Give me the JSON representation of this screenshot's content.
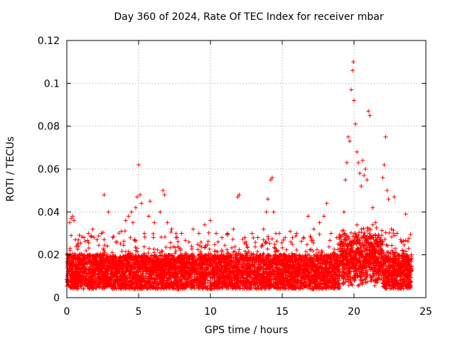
{
  "chart_data": {
    "type": "scatter",
    "title": "Day 360 of 2024, Rate Of TEC Index for receiver mbar",
    "xlabel": "GPS time / hours",
    "ylabel": "ROTI / TECUs",
    "xlim": [
      0,
      25
    ],
    "ylim": [
      0,
      0.12
    ],
    "xticks": [
      "0",
      "5",
      "10",
      "15",
      "20",
      "25"
    ],
    "yticks": [
      "0",
      "0.02",
      "0.04",
      "0.06",
      "0.08",
      "0.1",
      "0.12"
    ],
    "grid": true,
    "marker": "plus",
    "series_color": "#ff0000",
    "series": [
      {
        "name": "ROTI",
        "points": [
          [
            0.2,
            0.035
          ],
          [
            0.3,
            0.037
          ],
          [
            0.4,
            0.038
          ],
          [
            0.5,
            0.036
          ],
          [
            0.3,
            0.029
          ],
          [
            0.6,
            0.027
          ],
          [
            0.8,
            0.024
          ],
          [
            1.2,
            0.028
          ],
          [
            1.5,
            0.03
          ],
          [
            1.8,
            0.032
          ],
          [
            2.1,
            0.027
          ],
          [
            2.4,
            0.03
          ],
          [
            2.6,
            0.048
          ],
          [
            2.9,
            0.04
          ],
          [
            3.2,
            0.028
          ],
          [
            3.5,
            0.026
          ],
          [
            3.8,
            0.031
          ],
          [
            4.1,
            0.036
          ],
          [
            4.3,
            0.038
          ],
          [
            4.5,
            0.04
          ],
          [
            4.6,
            0.035
          ],
          [
            4.8,
            0.042
          ],
          [
            4.9,
            0.047
          ],
          [
            5.0,
            0.062
          ],
          [
            5.1,
            0.048
          ],
          [
            5.2,
            0.044
          ],
          [
            5.4,
            0.03
          ],
          [
            5.7,
            0.038
          ],
          [
            5.8,
            0.045
          ],
          [
            6.1,
            0.035
          ],
          [
            6.5,
            0.04
          ],
          [
            6.7,
            0.05
          ],
          [
            6.8,
            0.048
          ],
          [
            7.0,
            0.035
          ],
          [
            7.3,
            0.032
          ],
          [
            7.6,
            0.028
          ],
          [
            8.0,
            0.03
          ],
          [
            8.5,
            0.026
          ],
          [
            8.8,
            0.032
          ],
          [
            9.2,
            0.03
          ],
          [
            9.6,
            0.034
          ],
          [
            10.0,
            0.036
          ],
          [
            10.4,
            0.03
          ],
          [
            10.8,
            0.028
          ],
          [
            11.2,
            0.03
          ],
          [
            11.6,
            0.032
          ],
          [
            11.9,
            0.047
          ],
          [
            12.0,
            0.048
          ],
          [
            12.4,
            0.028
          ],
          [
            12.9,
            0.03
          ],
          [
            13.3,
            0.028
          ],
          [
            13.7,
            0.032
          ],
          [
            13.9,
            0.04
          ],
          [
            14.0,
            0.046
          ],
          [
            14.2,
            0.055
          ],
          [
            14.3,
            0.056
          ],
          [
            14.4,
            0.04
          ],
          [
            14.8,
            0.03
          ],
          [
            15.2,
            0.028
          ],
          [
            15.6,
            0.026
          ],
          [
            16.0,
            0.03
          ],
          [
            16.5,
            0.028
          ],
          [
            16.8,
            0.038
          ],
          [
            17.2,
            0.032
          ],
          [
            17.6,
            0.035
          ],
          [
            17.9,
            0.038
          ],
          [
            18.1,
            0.044
          ],
          [
            18.4,
            0.03
          ],
          [
            18.8,
            0.028
          ],
          [
            19.1,
            0.026
          ],
          [
            19.3,
            0.04
          ],
          [
            19.4,
            0.055
          ],
          [
            19.5,
            0.063
          ],
          [
            19.6,
            0.075
          ],
          [
            19.7,
            0.073
          ],
          [
            19.8,
            0.097
          ],
          [
            19.9,
            0.106
          ],
          [
            19.95,
            0.11
          ],
          [
            20.0,
            0.092
          ],
          [
            20.1,
            0.081
          ],
          [
            20.2,
            0.068
          ],
          [
            20.3,
            0.063
          ],
          [
            20.4,
            0.058
          ],
          [
            20.5,
            0.052
          ],
          [
            20.6,
            0.064
          ],
          [
            20.7,
            0.057
          ],
          [
            20.8,
            0.06
          ],
          [
            20.9,
            0.055
          ],
          [
            21.0,
            0.087
          ],
          [
            21.1,
            0.085
          ],
          [
            21.3,
            0.042
          ],
          [
            21.5,
            0.035
          ],
          [
            21.8,
            0.028
          ],
          [
            22.0,
            0.056
          ],
          [
            22.1,
            0.062
          ],
          [
            22.2,
            0.075
          ],
          [
            22.3,
            0.05
          ],
          [
            22.4,
            0.046
          ],
          [
            22.6,
            0.032
          ],
          [
            22.8,
            0.047
          ],
          [
            23.0,
            0.03
          ],
          [
            23.3,
            0.026
          ],
          [
            23.6,
            0.039
          ],
          [
            23.8,
            0.023
          ],
          [
            24.0,
            0.02
          ]
        ]
      }
    ]
  }
}
